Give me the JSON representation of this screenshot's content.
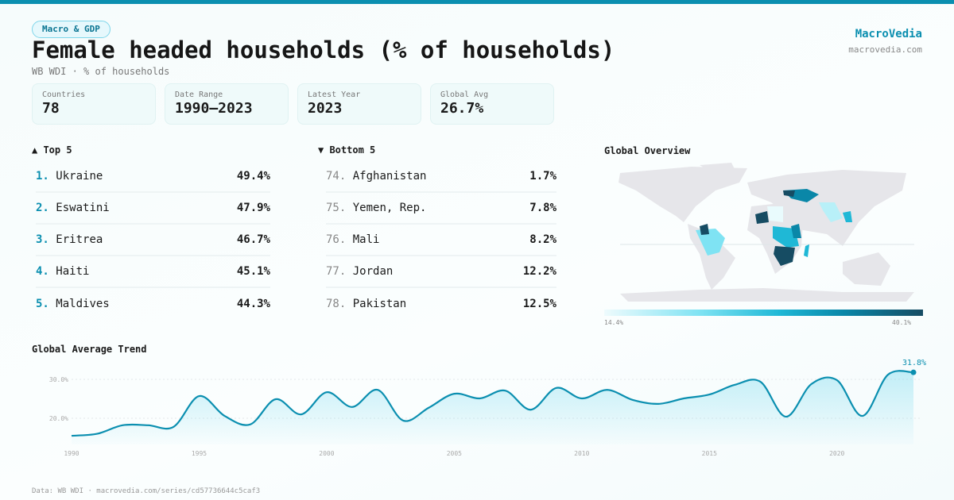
{
  "header": {
    "category": "Macro & GDP",
    "title": "Female headed households (% of households)",
    "subtitle": "WB WDI · % of households",
    "brand": "MacroVedia",
    "brand_url": "macrovedia.com"
  },
  "stats": [
    {
      "label": "Countries",
      "value": "78"
    },
    {
      "label": "Date Range",
      "value": "1990–2023"
    },
    {
      "label": "Latest Year",
      "value": "2023"
    },
    {
      "label": "Global Avg",
      "value": "26.7%"
    }
  ],
  "top5": {
    "title": "▲ Top 5",
    "items": [
      {
        "rank": "1.",
        "name": "Ukraine",
        "value": "49.4%"
      },
      {
        "rank": "2.",
        "name": "Eswatini",
        "value": "47.9%"
      },
      {
        "rank": "3.",
        "name": "Eritrea",
        "value": "46.7%"
      },
      {
        "rank": "4.",
        "name": "Haiti",
        "value": "45.1%"
      },
      {
        "rank": "5.",
        "name": "Maldives",
        "value": "44.3%"
      }
    ]
  },
  "bottom5": {
    "title": "▼ Bottom 5",
    "items": [
      {
        "rank": "74.",
        "name": "Afghanistan",
        "value": "1.7%"
      },
      {
        "rank": "75.",
        "name": "Yemen, Rep.",
        "value": "7.8%"
      },
      {
        "rank": "76.",
        "name": "Mali",
        "value": "8.2%"
      },
      {
        "rank": "77.",
        "name": "Jordan",
        "value": "12.2%"
      },
      {
        "rank": "78.",
        "name": "Pakistan",
        "value": "12.5%"
      }
    ]
  },
  "map": {
    "title": "Global Overview",
    "legend_min": "14.4%",
    "legend_max": "40.1%",
    "colors": {
      "low": "#eefbfd",
      "mid": "#1fb8d6",
      "high": "#164c63",
      "nodata": "#e6e6ea"
    }
  },
  "chart_data": {
    "type": "area",
    "title": "Global Average Trend",
    "x": [
      1990,
      1991,
      1992,
      1993,
      1994,
      1995,
      1996,
      1997,
      1998,
      1999,
      2000,
      2001,
      2002,
      2003,
      2004,
      2005,
      2006,
      2007,
      2008,
      2009,
      2010,
      2011,
      2012,
      2013,
      2014,
      2015,
      2016,
      2017,
      2018,
      2019,
      2020,
      2021,
      2022,
      2023
    ],
    "values": [
      15.5,
      16.0,
      18.2,
      18.2,
      17.8,
      25.7,
      20.6,
      18.4,
      24.9,
      21.0,
      26.7,
      22.9,
      27.3,
      19.4,
      22.7,
      26.3,
      25.1,
      27.1,
      22.2,
      27.8,
      25.1,
      27.3,
      24.7,
      23.7,
      25.1,
      26.1,
      28.6,
      29.4,
      20.4,
      28.8,
      29.8,
      20.6,
      31.2,
      31.8
    ],
    "y_ticks": [
      "20.0%",
      "30.0%"
    ],
    "x_ticks": [
      "1990",
      "1995",
      "2000",
      "2005",
      "2010",
      "2015",
      "2020"
    ],
    "last_label": "31.8%",
    "grid": "dotted horizontal",
    "color": "#0b8fb0"
  },
  "footer": "Data: WB WDI · macrovedia.com/series/cd57736644c5caf3"
}
